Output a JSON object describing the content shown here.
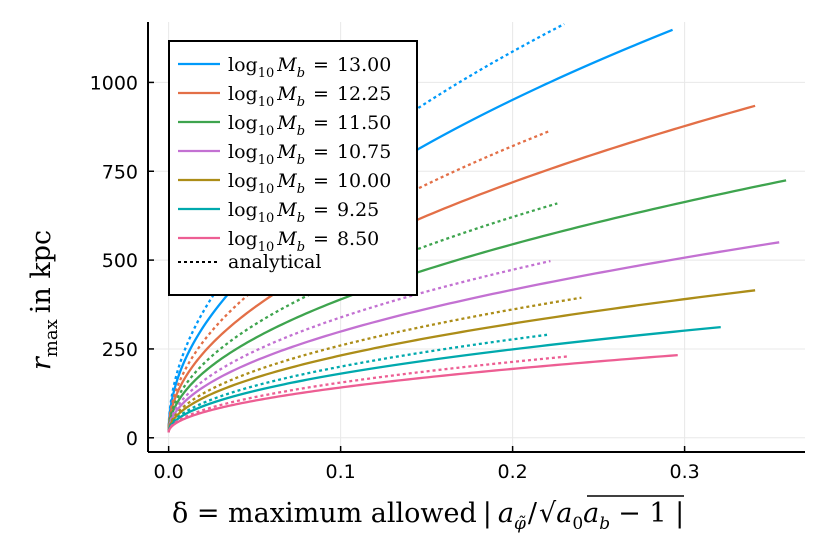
{
  "chart_data": {
    "type": "line",
    "xlabel": "δ = maximum allowed | a_φ̃ / √(a₀ a_b) − 1 |",
    "xlabel_parts": {
      "lhs": "δ = maximum allowed",
      "num": "a",
      "num_sub": "φ̃",
      "den": "a",
      "den_sub0": "0",
      "den2": "a",
      "den_sub_b": "b",
      "tail": "− 1 |"
    },
    "ylabel": "r_max in kpc",
    "ylabel_parts": {
      "r": "r",
      "sub": "max",
      "rest": "in kpc"
    },
    "xlim": [
      -0.012,
      0.37
    ],
    "ylim": [
      -40,
      1170
    ],
    "x_ticks": [
      0.0,
      0.1,
      0.2,
      0.3
    ],
    "x_tick_labels": [
      "0.0",
      "0.1",
      "0.2",
      "0.3"
    ],
    "y_ticks": [
      0,
      250,
      500,
      750,
      1000
    ],
    "y_tick_labels": [
      "0",
      "250",
      "500",
      "750",
      "1000"
    ],
    "grid": true,
    "legend_position": "top-left",
    "series": [
      {
        "name": "log10 M_b = 13.00",
        "mass": "13.00",
        "color": "#009AFA",
        "amplitude": 2093,
        "exponent": 0.5,
        "x_end": 0.293,
        "dotted_scale": 1.145,
        "dotted_x_end": 0.23
      },
      {
        "name": "log10 M_b = 12.25",
        "mass": "12.25",
        "color": "#E36F47",
        "amplitude": 1574,
        "exponent": 0.5,
        "x_end": 0.341,
        "dotted_scale": 1.145,
        "dotted_x_end": 0.222
      },
      {
        "name": "log10 M_b = 11.50",
        "mass": "11.50",
        "color": "#3EA44E",
        "amplitude": 1184,
        "exponent": 0.5,
        "x_end": 0.359,
        "dotted_scale": 1.145,
        "dotted_x_end": 0.226
      },
      {
        "name": "log10 M_b = 10.75",
        "mass": "10.75",
        "color": "#C371D2",
        "amplitude": 898,
        "exponent": 0.5,
        "x_end": 0.355,
        "dotted_scale": 1.14,
        "dotted_x_end": 0.222
      },
      {
        "name": "log10 M_b = 10.00",
        "mass": "10.00",
        "color": "#AC8D18",
        "amplitude": 685,
        "exponent": 0.5,
        "x_end": 0.341,
        "dotted_scale": 1.13,
        "dotted_x_end": 0.24
      },
      {
        "name": "log10 M_b = 9.25",
        "mass": "9.25",
        "color": "#00A9AD",
        "amplitude": 523,
        "exponent": 0.5,
        "x_end": 0.321,
        "dotted_scale": 1.12,
        "dotted_x_end": 0.22
      },
      {
        "name": "log10 M_b = 8.50",
        "mass": "8.50",
        "color": "#ED5E93",
        "amplitude": 400,
        "exponent": 0.5,
        "x_end": 0.296,
        "dotted_scale": 1.11,
        "dotted_x_end": 0.232
      }
    ],
    "legend_analytical_label": "analytical",
    "legend_log_base": "log",
    "legend_log_sub": "10",
    "legend_var": "M",
    "legend_var_sub": "b",
    "legend_eq": "="
  }
}
